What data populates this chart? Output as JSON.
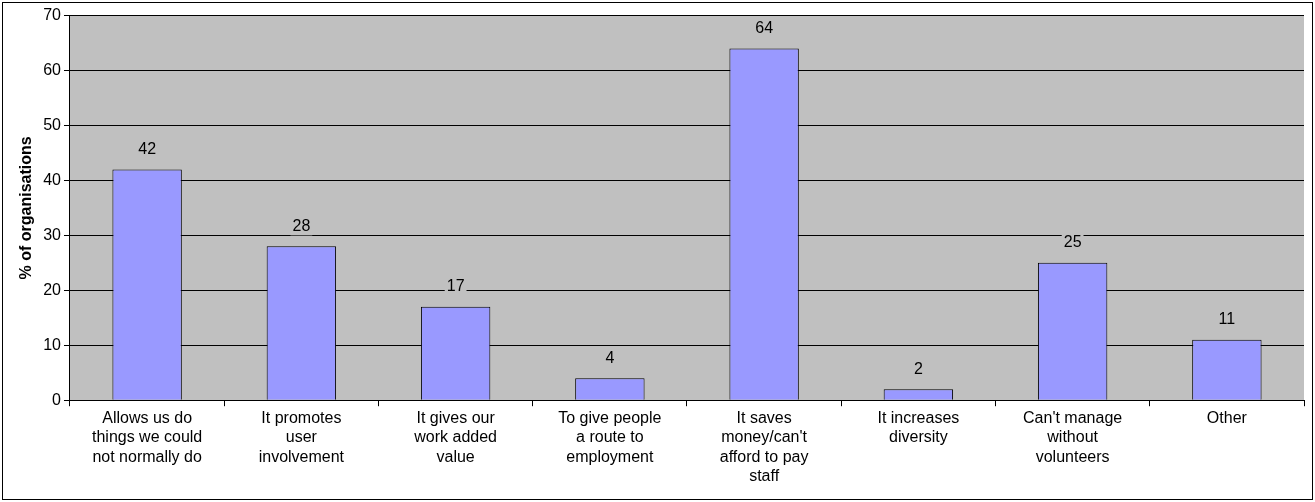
{
  "chart_data": {
    "type": "bar",
    "ylabel": "% of organisations",
    "categories": [
      "Allows us do things we could not normally do",
      "It promotes user involvement",
      "It gives our work added value",
      "To give people a route to employment",
      "It saves money/can't afford to pay staff",
      "It increases diversity",
      "Can't manage without volunteers",
      "Other"
    ],
    "values": [
      42,
      28,
      17,
      4,
      64,
      2,
      25,
      11
    ],
    "color": "#9999ff",
    "ylim": [
      0,
      70
    ],
    "yticks": [
      0,
      10,
      20,
      30,
      40,
      50,
      60,
      70
    ],
    "grid": "y",
    "legend": false,
    "data_labels": true
  }
}
